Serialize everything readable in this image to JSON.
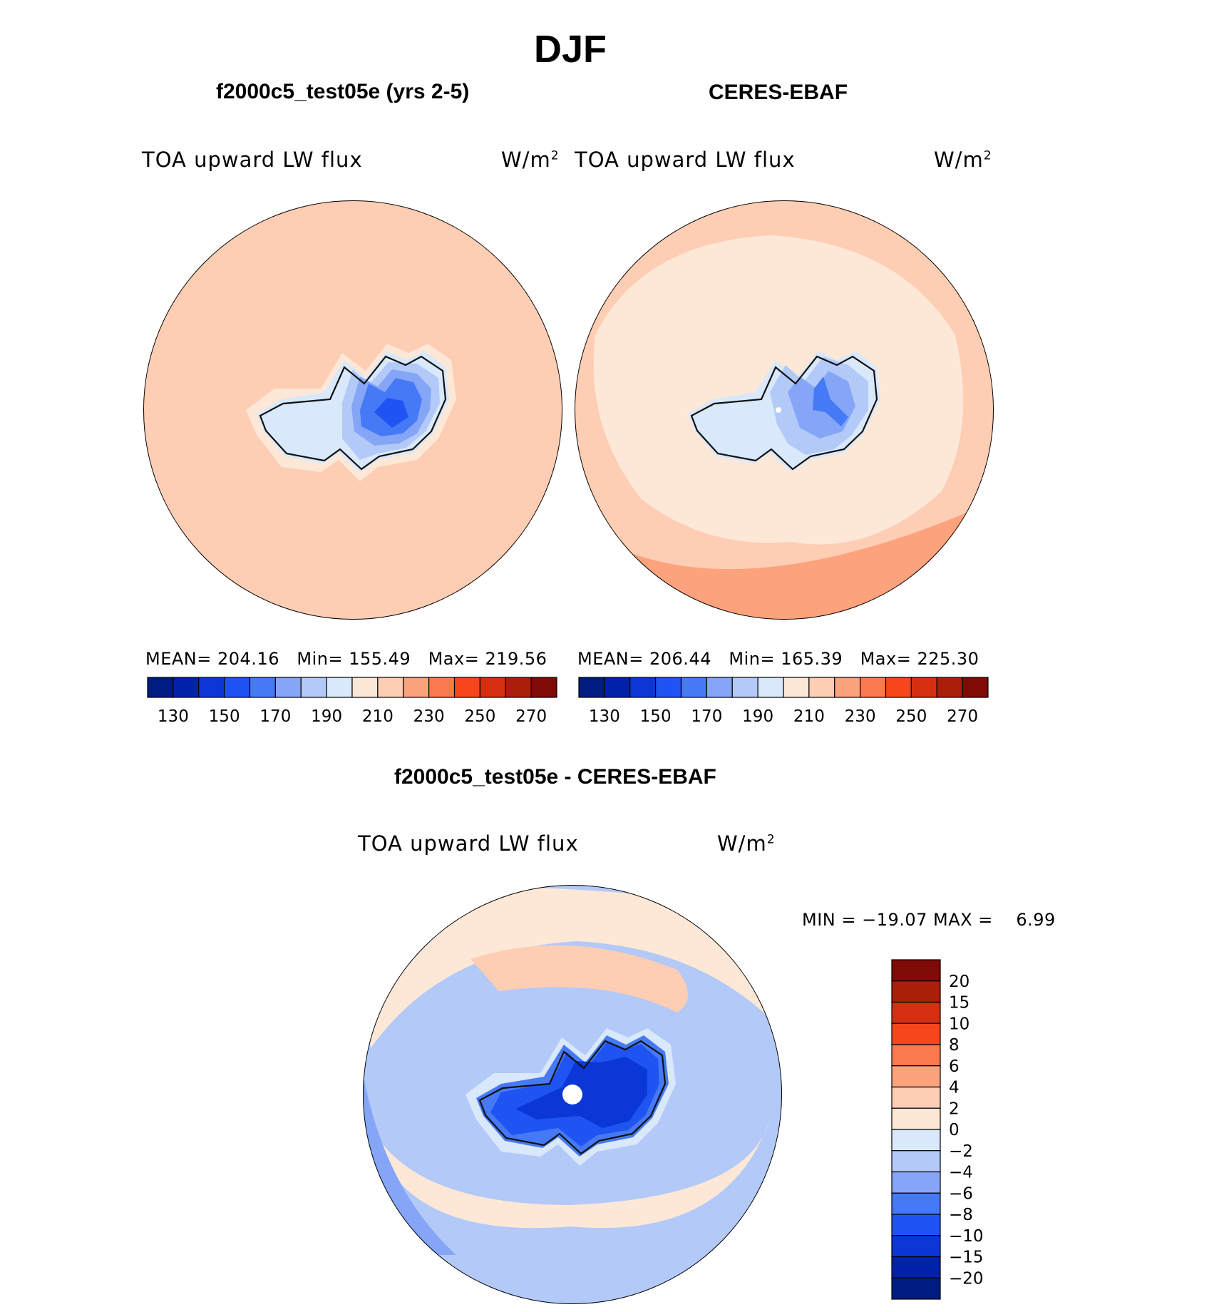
{
  "main_title": "DJF",
  "panels": {
    "model": {
      "title": "f2000c5_test05e (yrs 2-5)",
      "variable": "TOA upward LW flux",
      "units": "W/m",
      "units_sup": "2",
      "mean_label": "MEAN=",
      "mean_value": "204.16",
      "min_label": "Min=",
      "min_value": "155.49",
      "max_label": "Max=",
      "max_value": "219.56"
    },
    "obs": {
      "title": "CERES-EBAF",
      "variable": "TOA upward LW flux",
      "units": "W/m",
      "units_sup": "2",
      "mean_label": "MEAN=",
      "mean_value": "206.44",
      "min_label": "Min=",
      "min_value": "165.39",
      "max_label": "Max=",
      "max_value": "225.30"
    },
    "diff": {
      "title": "f2000c5_test05e - CERES-EBAF",
      "variable": "TOA upward LW flux",
      "units": "W/m",
      "units_sup": "2",
      "minmax_text": "MIN = −19.07 MAX =    6.99"
    }
  },
  "colors": {
    "abs_scale": [
      "#001c80",
      "#0022a8",
      "#0a37d6",
      "#1f54f2",
      "#4679f5",
      "#85a6f7",
      "#b3c9f8",
      "#d9e8fa",
      "#fde8d8",
      "#fdcdb4",
      "#fca27d",
      "#fb7a4d",
      "#f5461c",
      "#d43010",
      "#aa1f0a",
      "#7f0a06"
    ],
    "diff_scale": [
      "#001c80",
      "#0022a8",
      "#0a37d6",
      "#1f54f2",
      "#4679f5",
      "#85a6f7",
      "#b3c9f8",
      "#d9e8fa",
      "#fde8d8",
      "#fdcdb4",
      "#fca27d",
      "#fb7a4d",
      "#f5461c",
      "#d43010",
      "#aa1f0a",
      "#7f0a06"
    ],
    "model_ocean": "#fdcdb4",
    "obs_ocean": "#fdcdb4",
    "obs_warm_band": "#fca27d",
    "coast": "#111111"
  },
  "colorbars": {
    "abs_labels": [
      "130",
      "150",
      "170",
      "190",
      "210",
      "230",
      "250",
      "270"
    ],
    "diff_labels": [
      "20",
      "15",
      "10",
      "8",
      "6",
      "4",
      "2",
      "0",
      "−2",
      "−4",
      "−6",
      "−8",
      "−10",
      "−15",
      "−20"
    ]
  }
}
